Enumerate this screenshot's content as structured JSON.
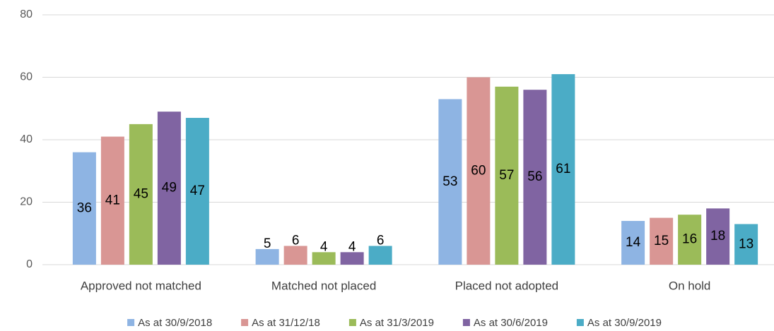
{
  "chart_data": {
    "type": "bar",
    "categories": [
      "Approved not matched",
      "Matched not placed",
      "Placed not adopted",
      "On hold"
    ],
    "series": [
      {
        "name": "As at 30/9/2018",
        "color": "#8eb4e3",
        "values": [
          36,
          5,
          53,
          14
        ]
      },
      {
        "name": "As at 31/12/18",
        "color": "#d99694",
        "values": [
          41,
          6,
          60,
          15
        ]
      },
      {
        "name": "As at 31/3/2019",
        "color": "#9bbb59",
        "values": [
          45,
          4,
          57,
          16
        ]
      },
      {
        "name": "As at 30/6/2019",
        "color": "#8064a2",
        "values": [
          49,
          4,
          56,
          18
        ]
      },
      {
        "name": "As at 30/9/2019",
        "color": "#4bacc6",
        "values": [
          47,
          6,
          61,
          13
        ]
      }
    ],
    "ylim": [
      0,
      80
    ],
    "yticks": [
      0,
      20,
      40,
      60,
      80
    ],
    "grid": true,
    "legend": "bottom",
    "data_labels": true
  }
}
